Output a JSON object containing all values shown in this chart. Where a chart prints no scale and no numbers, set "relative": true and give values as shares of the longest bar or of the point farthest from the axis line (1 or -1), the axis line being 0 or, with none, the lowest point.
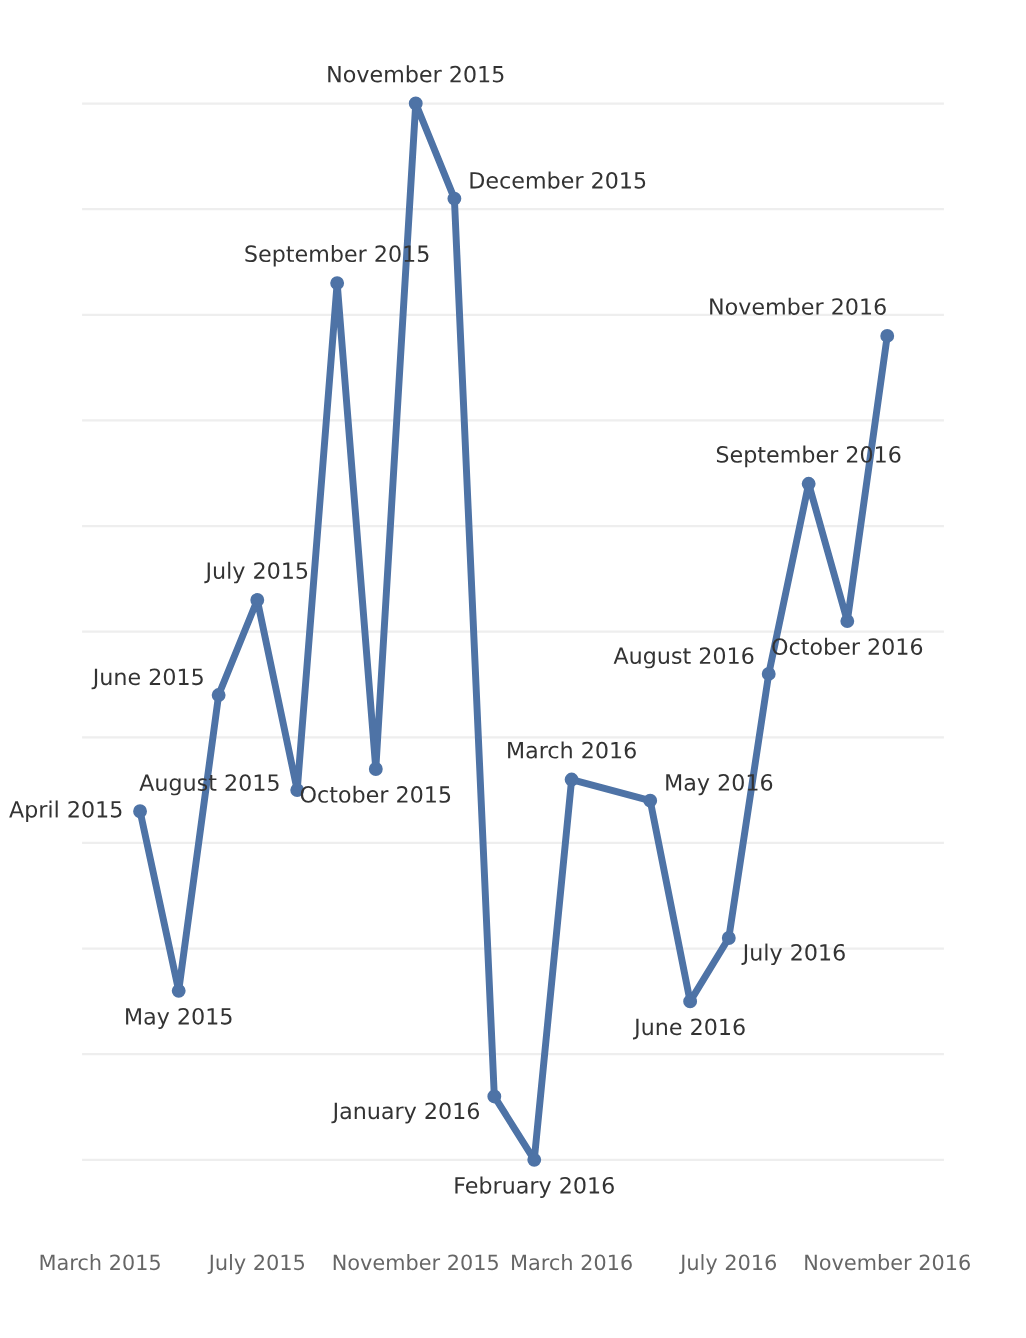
{
  "chart_data": {
    "type": "line",
    "relative": true,
    "grid": "y",
    "marker": "circle",
    "line_style": "solid",
    "x": [
      "2015-04",
      "2015-05",
      "2015-06",
      "2015-07",
      "2015-08",
      "2015-09",
      "2015-10",
      "2015-11",
      "2015-12",
      "2016-01",
      "2016-02",
      "2016-03",
      "2016-05",
      "2016-06",
      "2016-07",
      "2016-08",
      "2016-09",
      "2016-10",
      "2016-11"
    ],
    "series": [
      {
        "color": "#4e73a6",
        "values": [
          0.33,
          0.16,
          0.44,
          0.53,
          0.35,
          0.83,
          0.37,
          1,
          0.91,
          0.06,
          0,
          0.36,
          0.34,
          0.15,
          0.21,
          0.46,
          0.64,
          0.51,
          0.78
        ]
      }
    ],
    "xlim": [
      "2015-02-15",
      "2016-12-15"
    ],
    "xticks": [
      {
        "value": "2015-03",
        "label": "March 2015"
      },
      {
        "value": "2015-07",
        "label": "July 2015"
      },
      {
        "value": "2015-11",
        "label": "November 2015"
      },
      {
        "value": "2016-03",
        "label": "March 2016"
      },
      {
        "value": "2016-07",
        "label": "July 2016"
      },
      {
        "value": "2016-11",
        "label": "November 2016"
      }
    ],
    "annotations": [
      {
        "text": "April 2015",
        "x": "2015-04",
        "y": 0.33
      },
      {
        "text": "May 2015",
        "x": "2015-05",
        "y": 0.16
      },
      {
        "text": "June 2015",
        "x": "2015-06",
        "y": 0.44
      },
      {
        "text": "July 2015",
        "x": "2015-07",
        "y": 0.53
      },
      {
        "text": "August 2015",
        "x": "2015-08",
        "y": 0.35
      },
      {
        "text": "September 2015",
        "x": "2015-09",
        "y": 0.83
      },
      {
        "text": "October 2015",
        "x": "2015-10",
        "y": 0.37
      },
      {
        "text": "November 2015",
        "x": "2015-11",
        "y": 1
      },
      {
        "text": "December 2015",
        "x": "2015-12",
        "y": 0.91
      },
      {
        "text": "January 2016",
        "x": "2016-01",
        "y": 0.06
      },
      {
        "text": "February 2016",
        "x": "2016-02",
        "y": 0
      },
      {
        "text": "March 2016",
        "x": "2016-03",
        "y": 0.36
      },
      {
        "text": "May 2016",
        "x": "2016-05",
        "y": 0.34
      },
      {
        "text": "June 2016",
        "x": "2016-06",
        "y": 0.15
      },
      {
        "text": "July 2016",
        "x": "2016-07",
        "y": 0.21
      },
      {
        "text": "August 2016",
        "x": "2016-08",
        "y": 0.46
      },
      {
        "text": "September 2016",
        "x": "2016-09",
        "y": 0.64
      },
      {
        "text": "October 2016",
        "x": "2016-10",
        "y": 0.51
      },
      {
        "text": "November 2016",
        "x": "2016-11",
        "y": 0.78
      }
    ]
  }
}
